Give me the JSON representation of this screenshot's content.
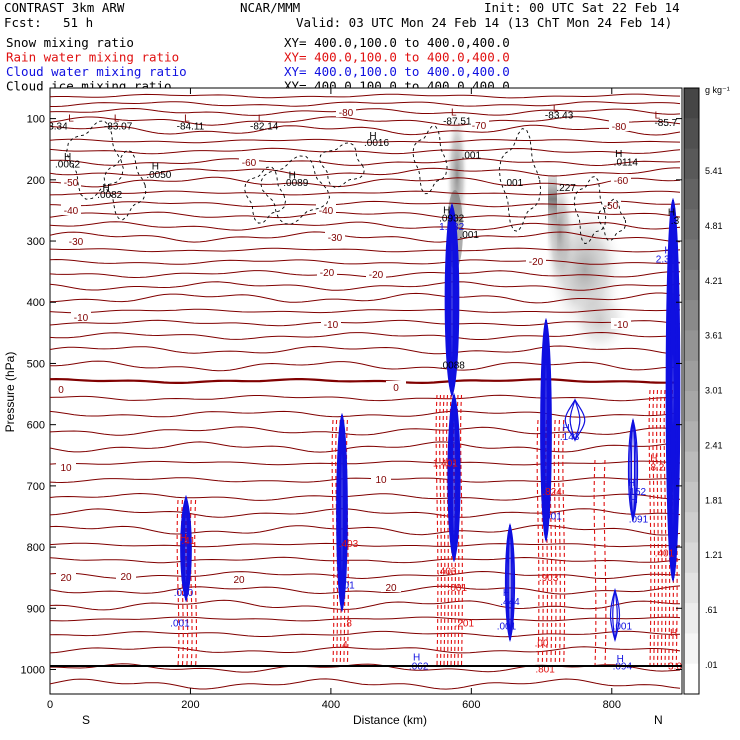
{
  "header": {
    "model": "CONTRAST  3km ARW",
    "org": "NCAR/MMM",
    "init": "Init: 00 UTC Sat 22 Feb 14",
    "fcst_label": "Fcst:",
    "fcst_value": "51 h",
    "valid": "Valid: 03 UTC Mon 24 Feb 14 (13 ChT Mon 24 Feb 14)",
    "fields": [
      {
        "label": "Snow mixing ratio",
        "color": "#000000",
        "xy": "XY= 400.0,100.0 to 400.0,400.0"
      },
      {
        "label": "Rain water mixing ratio",
        "color": "#e01010",
        "xy": "XY= 400.0,100.0 to 400.0,400.0"
      },
      {
        "label": "Cloud water mixing ratio",
        "color": "#1010e0",
        "xy": "XY= 400.0,100.0 to 400.0,400.0"
      },
      {
        "label": "Cloud ice mixing ratio",
        "color": "#000000",
        "xy": "XY= 400.0,100.0 to 400.0,400.0"
      }
    ]
  },
  "chart_data": {
    "type": "cross-section",
    "xlabel": "Distance (km)",
    "ylabel": "Pressure (hPa)",
    "xlim": [
      0,
      900
    ],
    "ylim": [
      1040,
      50
    ],
    "x_ticks": [
      0,
      200,
      400,
      600,
      800
    ],
    "y_ticks": [
      100,
      200,
      300,
      400,
      500,
      600,
      700,
      800,
      900,
      1000
    ],
    "x_end_labels": {
      "left": "S",
      "right": "N"
    },
    "colorbar": {
      "unit": "g kg⁻¹",
      "labels": [
        ".01",
        ".61",
        "1.21",
        "1.81",
        "2.41",
        "3.01",
        "3.61",
        "4.21",
        "4.81",
        "5.41"
      ]
    },
    "temperature_contours": {
      "color": "#800000",
      "labels": [
        "-80",
        "-70",
        "-60",
        "-50",
        "-40",
        "-30",
        "-20",
        "-10",
        "0",
        "10",
        "20"
      ]
    },
    "annotations": [
      {
        "text": "L",
        "x": 30,
        "p": 105,
        "color": "#800000"
      },
      {
        "text": "-83.34",
        "x": 5,
        "p": 118,
        "color": "#000000"
      },
      {
        "text": "L",
        "x": 95,
        "p": 105,
        "color": "#800000"
      },
      {
        "text": "-83.07",
        "x": 97,
        "p": 118,
        "color": "#000000"
      },
      {
        "text": "L",
        "x": 195,
        "p": 105,
        "color": "#800000"
      },
      {
        "text": "-84.11",
        "x": 200,
        "p": 118,
        "color": "#000000"
      },
      {
        "text": "L",
        "x": 300,
        "p": 105,
        "color": "#800000"
      },
      {
        "text": "-82.14",
        "x": 305,
        "p": 118,
        "color": "#000000"
      },
      {
        "text": "L",
        "x": 575,
        "p": 95,
        "color": "#800000"
      },
      {
        "text": "-87.51",
        "x": 580,
        "p": 110,
        "color": "#000000"
      },
      {
        "text": "L",
        "x": 720,
        "p": 88,
        "color": "#800000"
      },
      {
        "text": "-83.43",
        "x": 725,
        "p": 100,
        "color": "#000000"
      },
      {
        "text": "L",
        "x": 865,
        "p": 100,
        "color": "#800000"
      },
      {
        "text": "-85.7",
        "x": 877,
        "p": 112,
        "color": "#000000"
      },
      {
        "text": "H",
        "x": 460,
        "p": 133,
        "color": "#000000"
      },
      {
        "text": ".0016",
        "x": 465,
        "p": 145,
        "color": "#000000"
      },
      {
        "text": "H",
        "x": 25,
        "p": 168,
        "color": "#000000"
      },
      {
        "text": ".0062",
        "x": 25,
        "p": 180,
        "color": "#000000"
      },
      {
        "text": "H",
        "x": 150,
        "p": 183,
        "color": "#000000"
      },
      {
        "text": ".0050",
        "x": 155,
        "p": 197,
        "color": "#000000"
      },
      {
        "text": "H",
        "x": 80,
        "p": 218,
        "color": "#000000"
      },
      {
        "text": ".0082",
        "x": 85,
        "p": 230,
        "color": "#000000"
      },
      {
        "text": "H",
        "x": 345,
        "p": 198,
        "color": "#000000"
      },
      {
        "text": ".0089",
        "x": 350,
        "p": 210,
        "color": "#000000"
      },
      {
        "text": "H",
        "x": 810,
        "p": 163,
        "color": "#000000"
      },
      {
        "text": ".0114",
        "x": 820,
        "p": 177,
        "color": "#000000"
      },
      {
        "text": ".001",
        "x": 600,
        "p": 165,
        "color": "#000000"
      },
      {
        "text": ".001",
        "x": 660,
        "p": 210,
        "color": "#000000"
      },
      {
        "text": ".227",
        "x": 735,
        "p": 218,
        "color": "#000000"
      },
      {
        "text": "H",
        "x": 565,
        "p": 255,
        "color": "#000000"
      },
      {
        "text": ".0932",
        "x": 572,
        "p": 268,
        "color": "#000000"
      },
      {
        "text": "1.382",
        "x": 572,
        "p": 282,
        "color": "#1010e0"
      },
      {
        "text": ".001",
        "x": 597,
        "p": 295,
        "color": "#000000"
      },
      {
        "text": "H",
        "x": 885,
        "p": 258,
        "color": "#000000"
      },
      {
        "text": ".3",
        "x": 890,
        "p": 272,
        "color": "#000000"
      },
      {
        "text": "H",
        "x": 880,
        "p": 320,
        "color": "#1010e0"
      },
      {
        "text": "2.311",
        "x": 880,
        "p": 335,
        "color": "#1010e0"
      },
      {
        "text": ".0088",
        "x": 573,
        "p": 508,
        "color": "#000000"
      },
      {
        "text": "H",
        "x": 735,
        "p": 610,
        "color": "#1010e0"
      },
      {
        "text": ".143",
        "x": 740,
        "p": 625,
        "color": "#1010e0"
      },
      {
        "text": "1.401",
        "x": 563,
        "p": 668,
        "color": "#e01010"
      },
      {
        "text": "H",
        "x": 860,
        "p": 660,
        "color": "#e01010"
      },
      {
        "text": "8.2",
        "x": 865,
        "p": 675,
        "color": "#e01010"
      },
      {
        "text": "H",
        "x": 828,
        "p": 700,
        "color": "#1010e0"
      },
      {
        "text": ".152",
        "x": 835,
        "p": 715,
        "color": "#1010e0"
      },
      {
        "text": ".824",
        "x": 715,
        "p": 715,
        "color": "#e01010"
      },
      {
        "text": ".001",
        "x": 715,
        "p": 755,
        "color": "#1010e0"
      },
      {
        "text": "H",
        "x": 832,
        "p": 728,
        "color": "#1010e0"
      },
      {
        "text": ".091",
        "x": 838,
        "p": 760,
        "color": "#1010e0"
      },
      {
        "text": "H",
        "x": 190,
        "p": 790,
        "color": "#e01010"
      },
      {
        "text": ".41",
        "x": 197,
        "p": 795,
        "color": "#e01010"
      },
      {
        "text": ".403",
        "x": 425,
        "p": 800,
        "color": "#e01010"
      },
      {
        "text": ".403",
        "x": 565,
        "p": 845,
        "color": "#e01010"
      },
      {
        "text": ".903",
        "x": 710,
        "p": 855,
        "color": "#e01010"
      },
      {
        "text": ".401",
        "x": 875,
        "p": 815,
        "color": "#e01010"
      },
      {
        "text": ".020",
        "x": 190,
        "p": 880,
        "color": "#1010e0"
      },
      {
        "text": ".001",
        "x": 420,
        "p": 868,
        "color": "#1010e0"
      },
      {
        "text": ".8",
        "x": 424,
        "p": 930,
        "color": "#e01010"
      },
      {
        "text": "H",
        "x": 650,
        "p": 880,
        "color": "#1010e0"
      },
      {
        "text": ".444",
        "x": 655,
        "p": 895,
        "color": "#1010e0"
      },
      {
        "text": ".001",
        "x": 580,
        "p": 872,
        "color": "#e01010"
      },
      {
        "text": ".001",
        "x": 185,
        "p": 930,
        "color": "#1010e0"
      },
      {
        "text": ".4",
        "x": 418,
        "p": 965,
        "color": "#e01010"
      },
      {
        "text": ".201",
        "x": 590,
        "p": 930,
        "color": "#e01010"
      },
      {
        "text": ".001",
        "x": 650,
        "p": 935,
        "color": "#1010e0"
      },
      {
        "text": ".001",
        "x": 815,
        "p": 935,
        "color": "#1010e0"
      },
      {
        "text": ".00",
        "x": 700,
        "p": 962,
        "color": "#e01010"
      },
      {
        "text": "H",
        "x": 522,
        "p": 985,
        "color": "#1010e0"
      },
      {
        "text": ".062",
        "x": 525,
        "p": 1000,
        "color": "#1010e0"
      },
      {
        "text": "H",
        "x": 812,
        "p": 988,
        "color": "#1010e0"
      },
      {
        "text": ".094",
        "x": 815,
        "p": 1000,
        "color": "#1010e0"
      },
      {
        "text": ".801",
        "x": 705,
        "p": 1005,
        "color": "#e01010"
      },
      {
        "text": "H",
        "x": 888,
        "p": 945,
        "color": "#e01010"
      },
      {
        "text": "3.0",
        "x": 890,
        "p": 1000,
        "color": "#e01010"
      }
    ]
  }
}
